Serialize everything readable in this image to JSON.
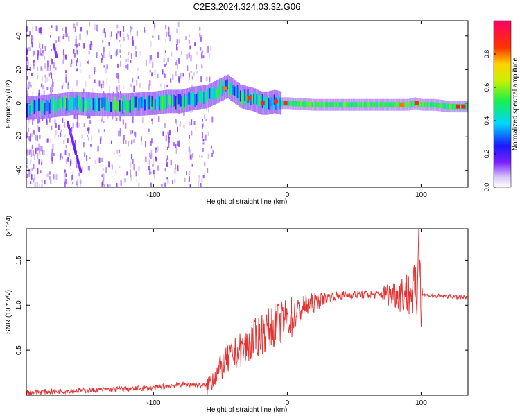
{
  "page": {
    "title": "C2E3.2024.324.03.32.G06"
  },
  "colors": {
    "snr_line": "#e53333",
    "frame": "#000000"
  },
  "chart_data": [
    {
      "type": "heatmap",
      "title": "C2E3.2024.324.03.32.G06",
      "xlabel": "Height of straight line (km)",
      "ylabel": "Frequency (Hz)",
      "xlim": [
        -195,
        135
      ],
      "ylim": [
        -50,
        49
      ],
      "x_ticks": [
        -100,
        0,
        100
      ],
      "x_tick_labels": [
        "-100",
        "0",
        "100"
      ],
      "y_ticks": [
        -40,
        -20,
        0,
        20,
        40
      ],
      "y_tick_labels": [
        "-40",
        "-20",
        "0",
        "20",
        "40"
      ],
      "colorbar": {
        "label": "Normalized spectral amplitude",
        "range": [
          0,
          1
        ],
        "ticks": [
          0.0,
          0.2,
          0.4,
          0.6,
          0.8
        ],
        "tick_labels": [
          "0.0",
          "0.2",
          "0.4",
          "0.6",
          "0.8"
        ],
        "colormap": "rainbow (white-violet-blue-cyan-green-yellow-red-magenta)"
      },
      "ridge": {
        "description": "dominant spectral ridge (frequency in Hz vs height in km)",
        "x": [
          -195,
          -180,
          -160,
          -140,
          -120,
          -100,
          -90,
          -80,
          -70,
          -60,
          -50,
          -45,
          -40,
          -35,
          -30,
          -25,
          -20,
          -15,
          -10,
          -5,
          0,
          20,
          40,
          60,
          80,
          90,
          95,
          100,
          110,
          120,
          135
        ],
        "y": [
          -3,
          -2,
          0,
          -1,
          -1,
          0,
          1,
          1,
          3,
          4,
          8,
          10,
          7,
          4,
          3,
          2,
          0,
          0,
          1,
          0,
          0,
          -1,
          -1,
          -1,
          -1,
          -1,
          0,
          -1,
          -1,
          -2,
          -2
        ]
      }
    },
    {
      "type": "line",
      "xlabel": "Height of straight line (km)",
      "ylabel": "SNR (10 * v/v)",
      "y_multiplier": "(x10^4)",
      "xlim": [
        -195,
        135
      ],
      "ylim": [
        0,
        1.85
      ],
      "x_ticks": [
        -100,
        0,
        100
      ],
      "x_tick_labels": [
        "-100",
        "0",
        "100"
      ],
      "y_ticks": [
        0.5,
        1.0,
        1.5
      ],
      "y_tick_labels": [
        "0.5",
        "1.0",
        "1.5"
      ],
      "series": [
        {
          "x": [
            -195,
            -180,
            -160,
            -140,
            -120,
            -100,
            -90,
            -80,
            -70,
            -60,
            -55,
            -50,
            -45,
            -40,
            -35,
            -30,
            -25,
            -20,
            -15,
            -10,
            -5,
            0,
            5,
            10,
            15,
            20,
            25,
            30,
            40,
            50,
            60,
            70,
            80,
            85,
            90,
            95,
            97,
            98,
            100,
            110,
            120,
            135
          ],
          "y": [
            0.03,
            0.04,
            0.05,
            0.06,
            0.07,
            0.08,
            0.1,
            0.12,
            0.12,
            0.1,
            0.2,
            0.3,
            0.38,
            0.45,
            0.5,
            0.55,
            0.62,
            0.68,
            0.72,
            0.78,
            0.8,
            0.85,
            0.88,
            0.95,
            1.0,
            1.03,
            1.06,
            1.09,
            1.11,
            1.12,
            1.12,
            1.12,
            1.13,
            1.14,
            1.13,
            1.15,
            1.05,
            1.85,
            1.12,
            1.1,
            1.1,
            1.08
          ]
        }
      ]
    }
  ]
}
